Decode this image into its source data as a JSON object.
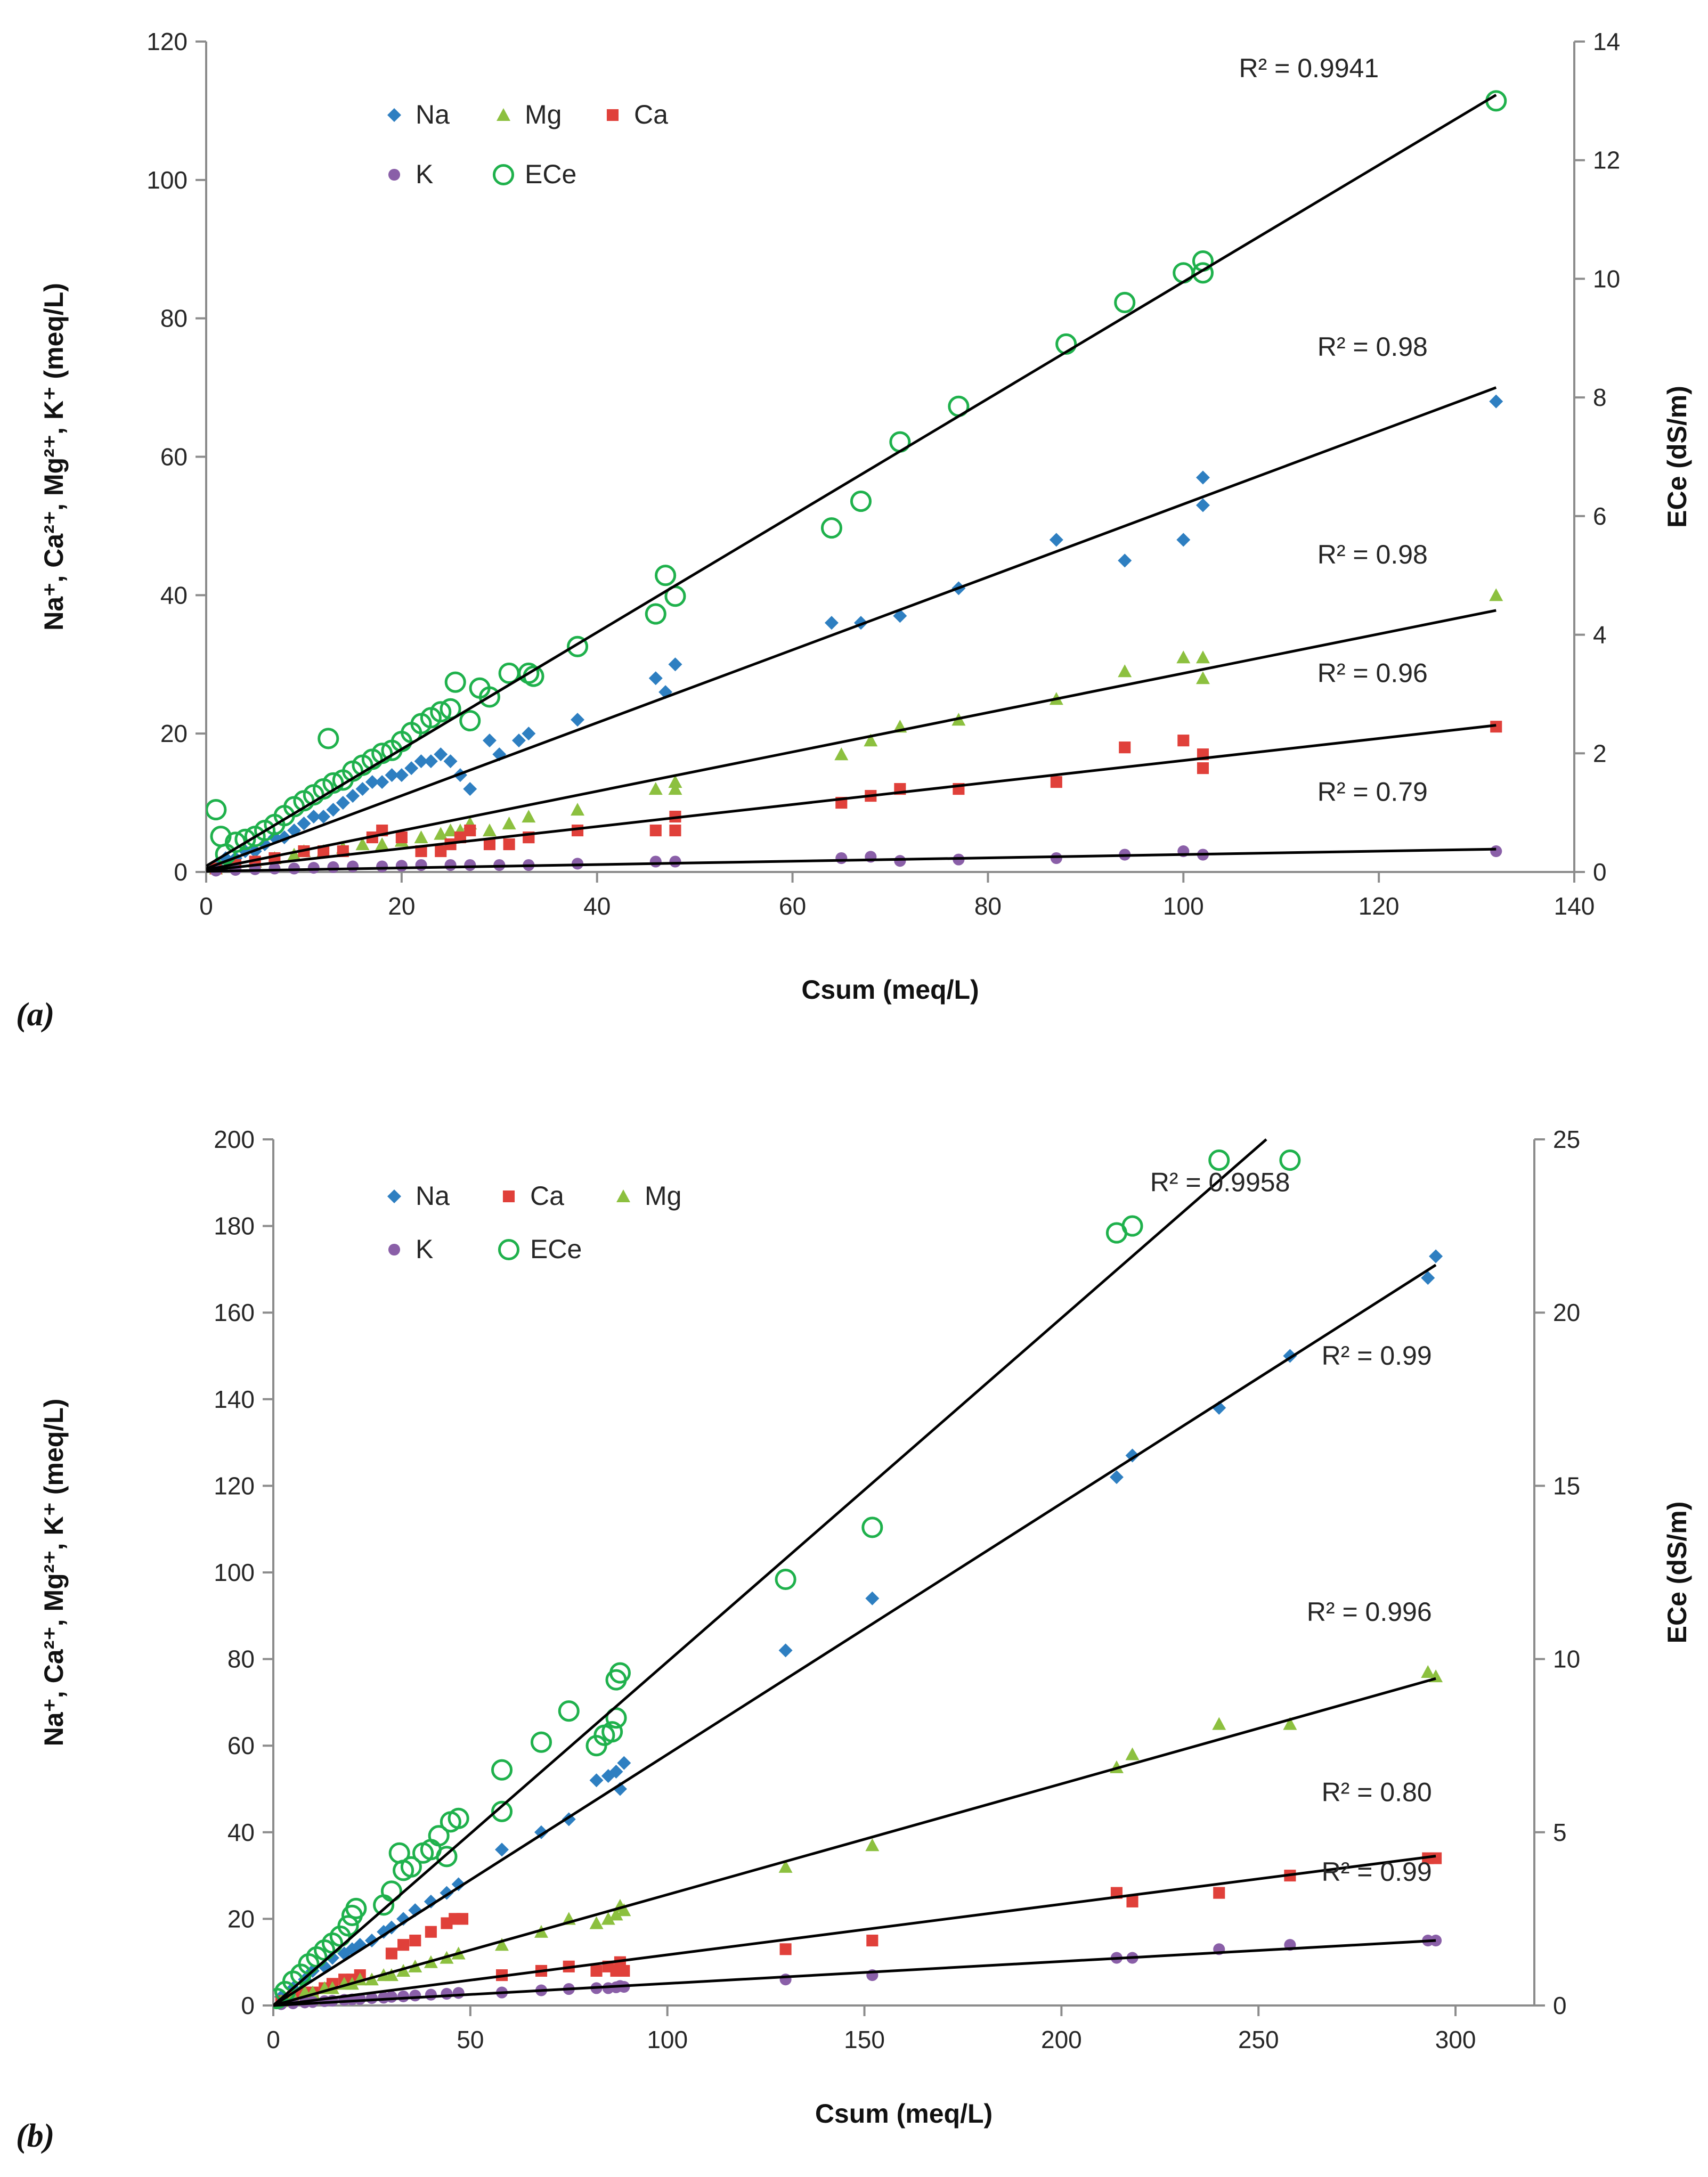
{
  "chart_data": [
    {
      "panel_label": "a",
      "panel_label_text": "(a)",
      "type": "scatter",
      "xlabel": "Csum (meq/L)",
      "ylabel": "Na⁺, Ca²⁺, Mg²⁺, K⁺ (meq/L)",
      "y2label": "ECe (dS/m)",
      "xlim": [
        0,
        140
      ],
      "ylim": [
        0,
        120
      ],
      "y2lim": [
        0,
        14
      ],
      "xticks": [
        "0",
        "20",
        "40",
        "60",
        "80",
        "100",
        "120",
        "140"
      ],
      "yticks": [
        "0",
        "20",
        "40",
        "60",
        "80",
        "100",
        "120"
      ],
      "y2ticks": [
        "0",
        "2",
        "4",
        "6",
        "8",
        "10",
        "12",
        "14"
      ],
      "grid": false,
      "legend_position": "top-left",
      "legend": [
        {
          "name": "Na",
          "marker": "diamond",
          "color": "#2e7fc1"
        },
        {
          "name": "Mg",
          "marker": "triangle",
          "color": "#8cc03f"
        },
        {
          "name": "Ca",
          "marker": "square",
          "color": "#e0403a"
        },
        {
          "name": "K",
          "marker": "circle",
          "color": "#8a5fa8"
        },
        {
          "name": "ECe",
          "marker": "open-circle",
          "color": "#1fb14c"
        }
      ],
      "series": [
        {
          "name": "Na",
          "axis": "left",
          "marker": "diamond",
          "color": "#2e7fc1",
          "x": [
            1,
            2,
            3,
            4,
            5,
            6,
            7,
            8,
            9,
            10,
            11,
            12,
            13,
            14,
            15,
            16,
            17,
            18,
            19,
            20,
            21,
            22,
            23,
            24,
            25,
            26,
            27,
            29,
            30,
            32,
            33,
            38,
            46,
            47,
            48,
            64,
            67,
            71,
            77,
            87,
            94,
            100,
            102,
            102,
            132
          ],
          "y": [
            1,
            2,
            2,
            3,
            3,
            4,
            5,
            5,
            6,
            7,
            8,
            8,
            9,
            10,
            11,
            12,
            13,
            13,
            14,
            14,
            15,
            16,
            16,
            17,
            16,
            14,
            12,
            19,
            17,
            19,
            20,
            22,
            28,
            26,
            30,
            36,
            36,
            37,
            41,
            48,
            45,
            48,
            53,
            57,
            68
          ]
        },
        {
          "name": "Mg",
          "axis": "left",
          "marker": "triangle",
          "color": "#8cc03f",
          "x": [
            1,
            3,
            5,
            7,
            9,
            10,
            12,
            14,
            16,
            18,
            20,
            22,
            24,
            25,
            26,
            27,
            29,
            31,
            33,
            38,
            46,
            48,
            48,
            65,
            68,
            71,
            77,
            87,
            94,
            100,
            102,
            102,
            132
          ],
          "y": [
            0.5,
            1,
            1.5,
            2,
            2.5,
            3,
            3,
            3.5,
            4,
            4,
            4.5,
            5,
            5.5,
            6,
            6,
            7,
            6,
            7,
            8,
            9,
            12,
            13,
            12,
            17,
            19,
            21,
            22,
            25,
            29,
            31,
            31,
            28,
            40
          ]
        },
        {
          "name": "Ca",
          "axis": "left",
          "marker": "square",
          "color": "#e0403a",
          "x": [
            1,
            3,
            5,
            7,
            10,
            12,
            14,
            17,
            18,
            20,
            22,
            24,
            25,
            26,
            27,
            29,
            31,
            33,
            33,
            38,
            46,
            48,
            48,
            65,
            68,
            71,
            77,
            87,
            94,
            100,
            102,
            102,
            132
          ],
          "y": [
            0.5,
            1,
            1.5,
            2,
            3,
            3,
            3,
            5,
            6,
            5,
            3,
            3,
            4,
            5,
            6,
            4,
            4,
            5,
            5,
            6,
            6,
            8,
            6,
            10,
            11,
            12,
            12,
            13,
            18,
            19,
            17,
            15,
            21
          ]
        },
        {
          "name": "K",
          "axis": "left",
          "marker": "circle",
          "color": "#8a5fa8",
          "x": [
            1,
            3,
            5,
            7,
            9,
            11,
            13,
            15,
            18,
            20,
            22,
            25,
            27,
            30,
            33,
            38,
            46,
            48,
            65,
            68,
            71,
            77,
            87,
            94,
            100,
            102,
            132
          ],
          "y": [
            0.2,
            0.3,
            0.4,
            0.5,
            0.5,
            0.6,
            0.7,
            0.8,
            0.8,
            0.9,
            1,
            1,
            1,
            1,
            1,
            1.2,
            1.5,
            1.5,
            2,
            2.2,
            1.6,
            1.8,
            2,
            2.5,
            3,
            2.5,
            3
          ]
        },
        {
          "name": "ECe",
          "axis": "right",
          "marker": "open-circle",
          "color": "#1fb14c",
          "x": [
            1,
            1.5,
            2,
            3,
            4,
            5,
            6,
            7,
            8,
            9,
            10,
            11,
            12,
            12.5,
            13,
            14,
            15,
            16,
            17,
            18,
            19,
            20,
            21,
            22,
            23,
            24,
            25,
            25.5,
            27,
            28,
            29,
            31,
            33,
            33.5,
            38,
            46,
            47,
            48,
            64,
            67,
            71,
            77,
            88,
            94,
            100,
            102,
            102,
            132
          ],
          "y": [
            1.05,
            0.6,
            0.3,
            0.5,
            0.55,
            0.6,
            0.7,
            0.8,
            0.95,
            1.1,
            1.2,
            1.3,
            1.4,
            2.25,
            1.5,
            1.55,
            1.7,
            1.8,
            1.9,
            2,
            2.05,
            2.2,
            2.35,
            2.5,
            2.6,
            2.7,
            2.75,
            3.2,
            2.55,
            3.1,
            2.95,
            3.35,
            3.35,
            3.3,
            3.8,
            4.35,
            5,
            4.65,
            5.8,
            6.25,
            7.25,
            7.85,
            8.9,
            9.6,
            10.1,
            10.1,
            10.3,
            13
          ]
        }
      ],
      "fit_lines": [
        {
          "series": "ECe",
          "axis": "right",
          "from": [
            0,
            0.1
          ],
          "to": [
            132,
            13.1
          ],
          "r2_label": "R² = 0.9941",
          "r2_anchor": [
            120,
            13.4
          ]
        },
        {
          "series": "Na",
          "axis": "left",
          "from": [
            0,
            0.5
          ],
          "to": [
            132,
            70
          ],
          "r2_label": "R² = 0.98",
          "r2_anchor": [
            125,
            8.7
          ]
        },
        {
          "series": "Mg",
          "axis": "left",
          "from": [
            0,
            0.3
          ],
          "to": [
            132,
            37.8
          ],
          "r2_label": "R² = 0.98",
          "r2_anchor": [
            125,
            5.2
          ]
        },
        {
          "series": "Ca",
          "axis": "left",
          "from": [
            0,
            0.2
          ],
          "to": [
            132,
            21.2
          ],
          "r2_label": "R² = 0.96",
          "r2_anchor": [
            125,
            3.2
          ]
        },
        {
          "series": "K",
          "axis": "left",
          "from": [
            0,
            0.1
          ],
          "to": [
            132,
            3.3
          ],
          "r2_label": "R² = 0.79",
          "r2_anchor": [
            125,
            1.2
          ]
        }
      ]
    },
    {
      "panel_label": "b",
      "panel_label_text": "(b)",
      "type": "scatter",
      "xlabel": "Csum (meq/L)",
      "ylabel": "Na⁺, Ca²⁺, Mg²⁺, K⁺ (meq/L)",
      "y2label": "ECe (dS/m)",
      "xlim": [
        0,
        320
      ],
      "ylim": [
        0,
        200
      ],
      "y2lim": [
        0,
        25
      ],
      "xticks": [
        "0",
        "50",
        "100",
        "150",
        "200",
        "250",
        "300"
      ],
      "yticks": [
        "0",
        "20",
        "40",
        "60",
        "80",
        "100",
        "120",
        "140",
        "160",
        "180",
        "200"
      ],
      "y2ticks": [
        "0",
        "5",
        "10",
        "15",
        "20",
        "25"
      ],
      "grid": false,
      "legend_position": "top-left",
      "legend": [
        {
          "name": "Na",
          "marker": "diamond",
          "color": "#2e7fc1"
        },
        {
          "name": "Ca",
          "marker": "square",
          "color": "#e0403a"
        },
        {
          "name": "Mg",
          "marker": "triangle",
          "color": "#8cc03f"
        },
        {
          "name": "K",
          "marker": "circle",
          "color": "#8a5fa8"
        },
        {
          "name": "ECe",
          "marker": "open-circle",
          "color": "#1fb14c"
        }
      ],
      "series": [
        {
          "name": "Na",
          "axis": "left",
          "marker": "diamond",
          "color": "#2e7fc1",
          "x": [
            2,
            5,
            8,
            10,
            13,
            15,
            18,
            20,
            22,
            25,
            28,
            30,
            33,
            36,
            40,
            44,
            47,
            58,
            68,
            75,
            82,
            85,
            87,
            88,
            89,
            130,
            152,
            214,
            218,
            240,
            258,
            293,
            295
          ],
          "y": [
            2,
            4,
            6,
            8,
            9,
            11,
            12,
            13,
            14,
            15,
            17,
            18,
            20,
            22,
            24,
            26,
            28,
            36,
            40,
            43,
            52,
            53,
            54,
            50,
            56,
            82,
            94,
            122,
            127,
            138,
            150,
            168,
            173
          ]
        },
        {
          "name": "Ca",
          "axis": "left",
          "marker": "square",
          "color": "#e0403a",
          "x": [
            2,
            5,
            8,
            10,
            13,
            15,
            18,
            20,
            22,
            30,
            33,
            36,
            40,
            44,
            46,
            48,
            58,
            68,
            75,
            82,
            85,
            87,
            88,
            89,
            130,
            152,
            214,
            218,
            240,
            258,
            293,
            295
          ],
          "y": [
            1,
            2,
            3,
            3,
            4,
            5,
            6,
            6,
            7,
            12,
            14,
            15,
            17,
            19,
            20,
            20,
            7,
            8,
            9,
            8,
            9,
            8,
            10,
            8,
            13,
            15,
            26,
            24,
            26,
            30,
            34,
            34
          ]
        },
        {
          "name": "Mg",
          "axis": "left",
          "marker": "triangle",
          "color": "#8cc03f",
          "x": [
            2,
            5,
            8,
            10,
            13,
            15,
            18,
            20,
            22,
            25,
            28,
            30,
            33,
            36,
            40,
            44,
            47,
            58,
            68,
            75,
            82,
            85,
            87,
            88,
            89,
            130,
            152,
            214,
            218,
            240,
            258,
            293,
            295
          ],
          "y": [
            1,
            2,
            3,
            3,
            4,
            4,
            5,
            5,
            6,
            6,
            7,
            7,
            8,
            9,
            10,
            11,
            12,
            14,
            17,
            20,
            19,
            20,
            21,
            23,
            22,
            32,
            37,
            55,
            58,
            65,
            65,
            77,
            76
          ]
        },
        {
          "name": "K",
          "axis": "left",
          "marker": "circle",
          "color": "#8a5fa8",
          "x": [
            2,
            5,
            8,
            10,
            13,
            15,
            18,
            20,
            22,
            25,
            28,
            30,
            33,
            36,
            40,
            44,
            47,
            58,
            68,
            75,
            82,
            85,
            87,
            88,
            89,
            130,
            152,
            214,
            218,
            240,
            258,
            293,
            295
          ],
          "y": [
            0.3,
            0.5,
            0.7,
            0.8,
            1,
            1.1,
            1.3,
            1.4,
            1.5,
            1.7,
            1.8,
            2,
            2.1,
            2.3,
            2.5,
            2.7,
            2.9,
            3,
            3.5,
            3.8,
            4,
            4,
            4.2,
            4.5,
            4.3,
            6,
            7,
            11,
            11,
            13,
            14,
            15,
            15
          ]
        },
        {
          "name": "ECe",
          "axis": "right",
          "marker": "open-circle",
          "color": "#1fb14c",
          "x": [
            1,
            3,
            5,
            7,
            9,
            11,
            13,
            15,
            17,
            19,
            20,
            21,
            28,
            30,
            32,
            33,
            35,
            38,
            40,
            42,
            44,
            45,
            47,
            58,
            58,
            68,
            75,
            82,
            84,
            86,
            87,
            87,
            88,
            130,
            152,
            214,
            218,
            240,
            258
          ],
          "y": [
            0.2,
            0.4,
            0.7,
            0.9,
            1.2,
            1.4,
            1.6,
            1.8,
            2,
            2.3,
            2.6,
            2.8,
            2.9,
            3.3,
            4.4,
            3.9,
            4,
            4.4,
            4.5,
            4.9,
            4.3,
            5.3,
            5.4,
            5.6,
            6.8,
            7.6,
            8.5,
            7.5,
            7.8,
            7.9,
            8.3,
            9.4,
            9.6,
            12.3,
            13.8,
            22.3,
            22.5,
            24.4,
            24.4
          ]
        }
      ],
      "fit_lines": [
        {
          "series": "ECe",
          "axis": "right",
          "from": [
            0,
            0
          ],
          "to": [
            252,
            25
          ],
          "r2_label": "R² = 0.9958",
          "r2_anchor": [
            258,
            23.5
          ]
        },
        {
          "series": "Na",
          "axis": "left",
          "from": [
            0,
            0
          ],
          "to": [
            295,
            171
          ],
          "r2_label": "R² = 0.99",
          "r2_anchor": [
            294,
            18.5
          ]
        },
        {
          "series": "Mg",
          "axis": "left",
          "from": [
            0,
            0
          ],
          "to": [
            295,
            75.5
          ],
          "r2_label": "R² = 0.996",
          "r2_anchor": [
            294,
            11.1
          ]
        },
        {
          "series": "Ca",
          "axis": "left",
          "from": [
            0,
            0
          ],
          "to": [
            295,
            34.5
          ],
          "r2_label": "R² = 0.80",
          "r2_anchor": [
            294,
            5.9
          ]
        },
        {
          "series": "K",
          "axis": "left",
          "from": [
            0,
            0
          ],
          "to": [
            295,
            15
          ],
          "r2_label": "R² = 0.99",
          "r2_anchor": [
            294,
            3.6
          ]
        }
      ]
    }
  ]
}
